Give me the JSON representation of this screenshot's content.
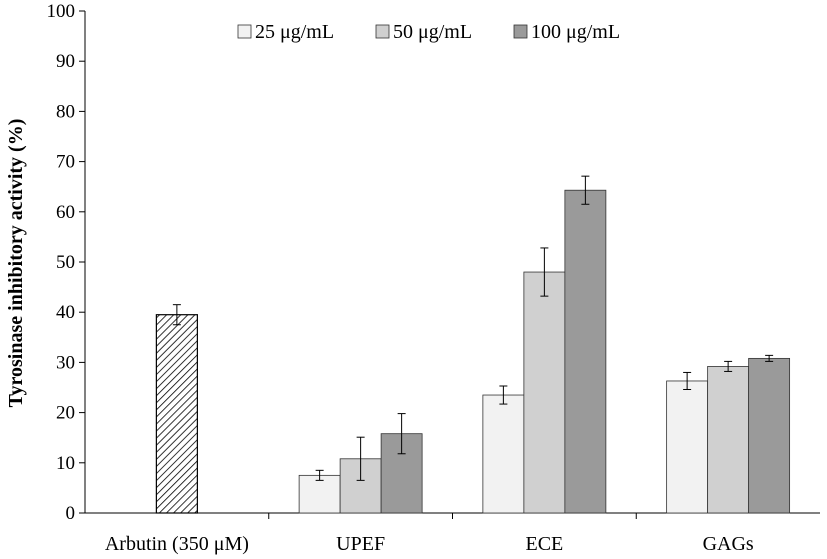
{
  "chart_data": {
    "type": "bar",
    "title": "",
    "xlabel": "",
    "ylabel": "Tyrosinase inhibitory activity (%)",
    "ylim": [
      0,
      100
    ],
    "yticks": [
      "0",
      "10",
      "20",
      "30",
      "40",
      "50",
      "60",
      "70",
      "80",
      "90",
      "100"
    ],
    "grid": false,
    "legend_position": "top",
    "categories": [
      "Arbutin (350 μM)",
      "UPEF",
      "ECE",
      "GAGs"
    ],
    "reference": {
      "category": "Arbutin (350 μM)",
      "value": 39.5,
      "error": 2.0,
      "pattern": "diagonal-hatch"
    },
    "series": [
      {
        "name": "25 μg/mL",
        "color": "#f2f2f2",
        "values": [
          null,
          7.5,
          23.5,
          26.3
        ],
        "errors": [
          null,
          1.0,
          1.8,
          1.7
        ]
      },
      {
        "name": "50 μg/mL",
        "color": "#d0d0d0",
        "values": [
          null,
          10.8,
          48.0,
          29.2
        ],
        "errors": [
          null,
          4.3,
          4.8,
          1.0
        ]
      },
      {
        "name": "100 μg/mL",
        "color": "#9a9a9a",
        "values": [
          null,
          15.8,
          64.3,
          30.8
        ],
        "errors": [
          null,
          4.0,
          2.8,
          0.6
        ]
      }
    ]
  }
}
